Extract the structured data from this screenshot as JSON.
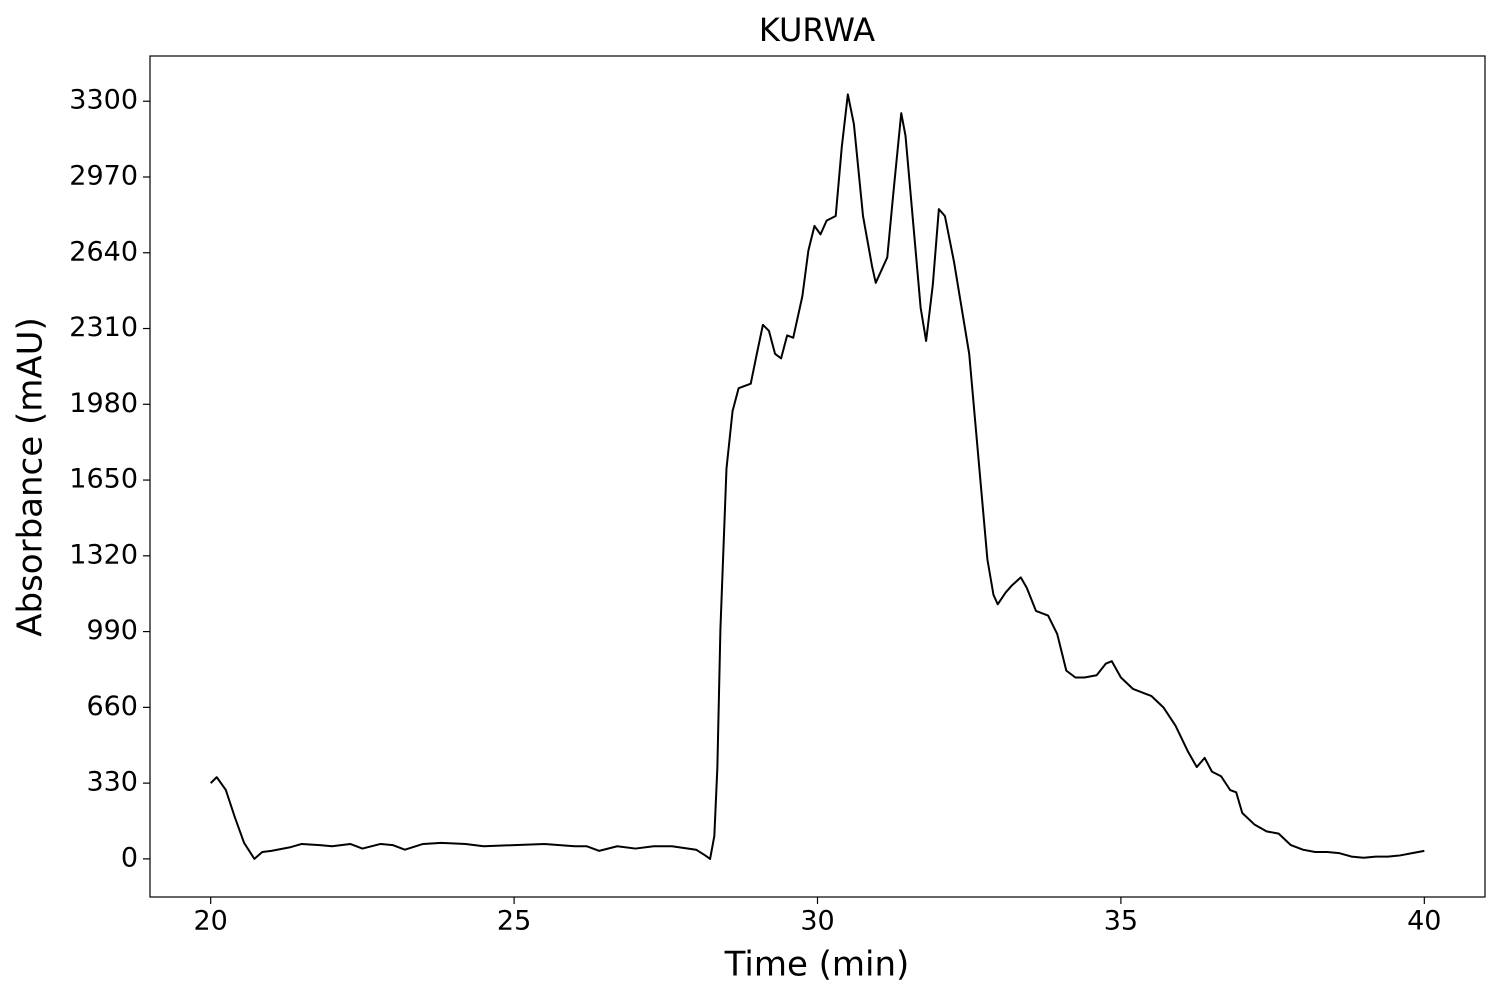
{
  "chart_data": {
    "type": "line",
    "title": "KURWA",
    "x_label": "Time (min)",
    "y_label": "Absorbance (mAU)",
    "xlim": [
      19,
      41
    ],
    "xticks": [
      20,
      25,
      30,
      35,
      40
    ],
    "ylim": [
      -166,
      3497
    ],
    "yticks": [
      0,
      330,
      660,
      990,
      1320,
      1650,
      1980,
      2310,
      2640,
      2970,
      3300
    ],
    "grid": false,
    "series": [
      {
        "color": "#000000",
        "x": [
          20.0,
          20.1,
          20.25,
          20.4,
          20.55,
          20.72,
          20.85,
          21.0,
          21.3,
          21.5,
          21.8,
          22.0,
          22.3,
          22.5,
          22.8,
          23.0,
          23.2,
          23.5,
          23.8,
          24.2,
          24.5,
          25.0,
          25.5,
          26.0,
          26.2,
          26.4,
          26.7,
          27.0,
          27.3,
          27.6,
          28.0,
          28.15,
          28.23,
          28.3,
          28.35,
          28.4,
          28.5,
          28.6,
          28.7,
          28.9,
          29.0,
          29.1,
          29.2,
          29.3,
          29.4,
          29.5,
          29.6,
          29.75,
          29.85,
          29.95,
          30.05,
          30.15,
          30.3,
          30.4,
          30.5,
          30.6,
          30.75,
          30.9,
          30.96,
          31.15,
          31.25,
          31.38,
          31.45,
          31.6,
          31.7,
          31.79,
          31.9,
          32.0,
          32.1,
          32.25,
          32.5,
          32.8,
          32.9,
          32.97,
          33.1,
          33.2,
          33.35,
          33.45,
          33.6,
          33.8,
          33.95,
          34.1,
          34.25,
          34.4,
          34.6,
          34.75,
          34.85,
          35.0,
          35.2,
          35.5,
          35.7,
          35.9,
          36.1,
          36.25,
          36.38,
          36.5,
          36.65,
          36.8,
          36.9,
          37.0,
          37.2,
          37.4,
          37.6,
          37.8,
          38.0,
          38.2,
          38.4,
          38.6,
          38.8,
          39.0,
          39.2,
          39.4,
          39.6,
          39.8,
          40.0
        ],
        "values": [
          330,
          356,
          300,
          180,
          70,
          0,
          30,
          35,
          50,
          65,
          60,
          55,
          65,
          45,
          65,
          60,
          40,
          65,
          70,
          65,
          55,
          60,
          65,
          55,
          55,
          35,
          55,
          45,
          55,
          55,
          40,
          15,
          0,
          100,
          400,
          1000,
          1700,
          1950,
          2050,
          2070,
          2200,
          2326,
          2300,
          2200,
          2180,
          2280,
          2270,
          2450,
          2650,
          2757,
          2720,
          2780,
          2800,
          3100,
          3330,
          3200,
          2800,
          2580,
          2509,
          2620,
          2900,
          3248,
          3150,
          2700,
          2400,
          2256,
          2500,
          2830,
          2800,
          2600,
          2200,
          1304,
          1150,
          1109,
          1160,
          1190,
          1226,
          1180,
          1080,
          1060,
          980,
          820,
          790,
          790,
          800,
          850,
          861,
          790,
          740,
          710,
          660,
          580,
          470,
          400,
          440,
          380,
          360,
          300,
          290,
          200,
          150,
          120,
          110,
          60,
          40,
          30,
          30,
          25,
          10,
          5,
          10,
          10,
          15,
          25,
          35
        ]
      }
    ]
  }
}
